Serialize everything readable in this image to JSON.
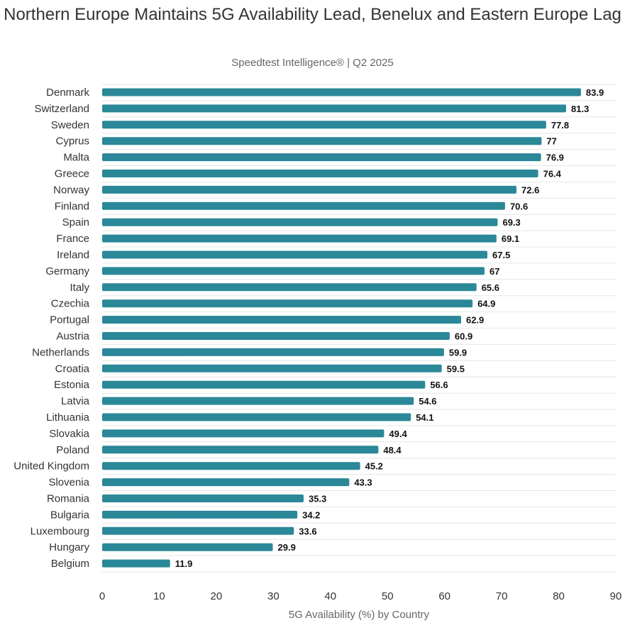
{
  "chart_data": {
    "type": "bar",
    "orientation": "horizontal",
    "title": "Northern Europe Maintains 5G Availability Lead, Benelux and Eastern Europe Lag",
    "subtitle": "Speedtest Intelligence® | Q2 2025",
    "xlabel": "5G Availability (%) by Country",
    "ylabel": "",
    "xlim": [
      0,
      90
    ],
    "xticks": [
      0,
      10,
      20,
      30,
      40,
      50,
      60,
      70,
      80,
      90
    ],
    "grid": true,
    "bar_color": "#2a8898",
    "categories": [
      "Denmark",
      "Switzerland",
      "Sweden",
      "Cyprus",
      "Malta",
      "Greece",
      "Norway",
      "Finland",
      "Spain",
      "France",
      "Ireland",
      "Germany",
      "Italy",
      "Czechia",
      "Portugal",
      "Austria",
      "Netherlands",
      "Croatia",
      "Estonia",
      "Latvia",
      "Lithuania",
      "Slovakia",
      "Poland",
      "United Kingdom",
      "Slovenia",
      "Romania",
      "Bulgaria",
      "Luxembourg",
      "Hungary",
      "Belgium"
    ],
    "values": [
      83.9,
      81.3,
      77.8,
      77,
      76.9,
      76.4,
      72.6,
      70.6,
      69.3,
      69.1,
      67.5,
      67,
      65.6,
      64.9,
      62.9,
      60.9,
      59.9,
      59.5,
      56.6,
      54.6,
      54.1,
      49.4,
      48.4,
      45.2,
      43.3,
      35.3,
      34.2,
      33.6,
      29.9,
      11.9
    ]
  }
}
